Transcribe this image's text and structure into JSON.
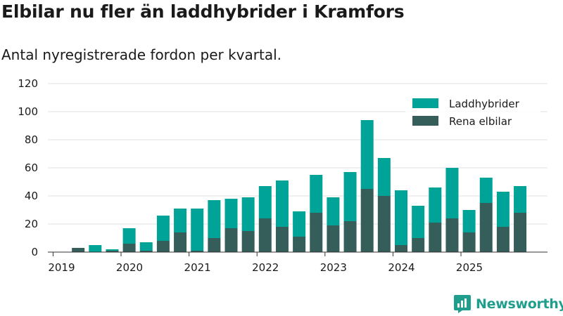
{
  "title": "Elbilar nu fler än laddhybrider i Kramfors",
  "subtitle": "Antal nyregistrerade fordon per kvartal.",
  "brand": {
    "name": "Newsworthy"
  },
  "colors": {
    "laddhybrider": "#00a398",
    "elbilar": "#355e5b",
    "grid": "#e0e0e0",
    "axis": "#333333",
    "brand": "#1f9e8e"
  },
  "chart_data": {
    "type": "bar",
    "stacked": true,
    "title": "Elbilar nu fler än laddhybrider i Kramfors",
    "subtitle": "Antal nyregistrerade fordon per kvartal.",
    "ylim": [
      0,
      120
    ],
    "yticks": [
      0,
      20,
      40,
      60,
      80,
      100,
      120
    ],
    "xtick_labels": [
      "2019",
      "2020",
      "2021",
      "2022",
      "2023",
      "2024",
      "2025"
    ],
    "grid": true,
    "legend": "top-right",
    "categories": [
      "2019 Q1",
      "2019 Q2",
      "2019 Q3",
      "2019 Q4",
      "2020 Q1",
      "2020 Q2",
      "2020 Q3",
      "2020 Q4",
      "2021 Q1",
      "2021 Q2",
      "2021 Q3",
      "2021 Q4",
      "2022 Q1",
      "2022 Q2",
      "2022 Q3",
      "2022 Q4",
      "2023 Q1",
      "2023 Q2",
      "2023 Q3",
      "2023 Q4",
      "2024 Q1",
      "2024 Q2",
      "2024 Q3",
      "2024 Q4",
      "2025 Q1",
      "2025 Q2",
      "2025 Q3",
      "2025 Q4"
    ],
    "series": [
      {
        "name": "Rena elbilar",
        "color": "#355e5b",
        "values": [
          0,
          3,
          0,
          1,
          6,
          1,
          8,
          14,
          1,
          10,
          17,
          15,
          24,
          18,
          11,
          28,
          19,
          22,
          45,
          40,
          5,
          10,
          21,
          24,
          14,
          35,
          18,
          28
        ]
      },
      {
        "name": "Laddhybrider",
        "color": "#00a398",
        "values": [
          0,
          0,
          5,
          1,
          11,
          6,
          18,
          17,
          30,
          27,
          21,
          24,
          23,
          33,
          18,
          27,
          20,
          35,
          49,
          27,
          39,
          23,
          25,
          36,
          16,
          18,
          25,
          19
        ]
      }
    ]
  }
}
